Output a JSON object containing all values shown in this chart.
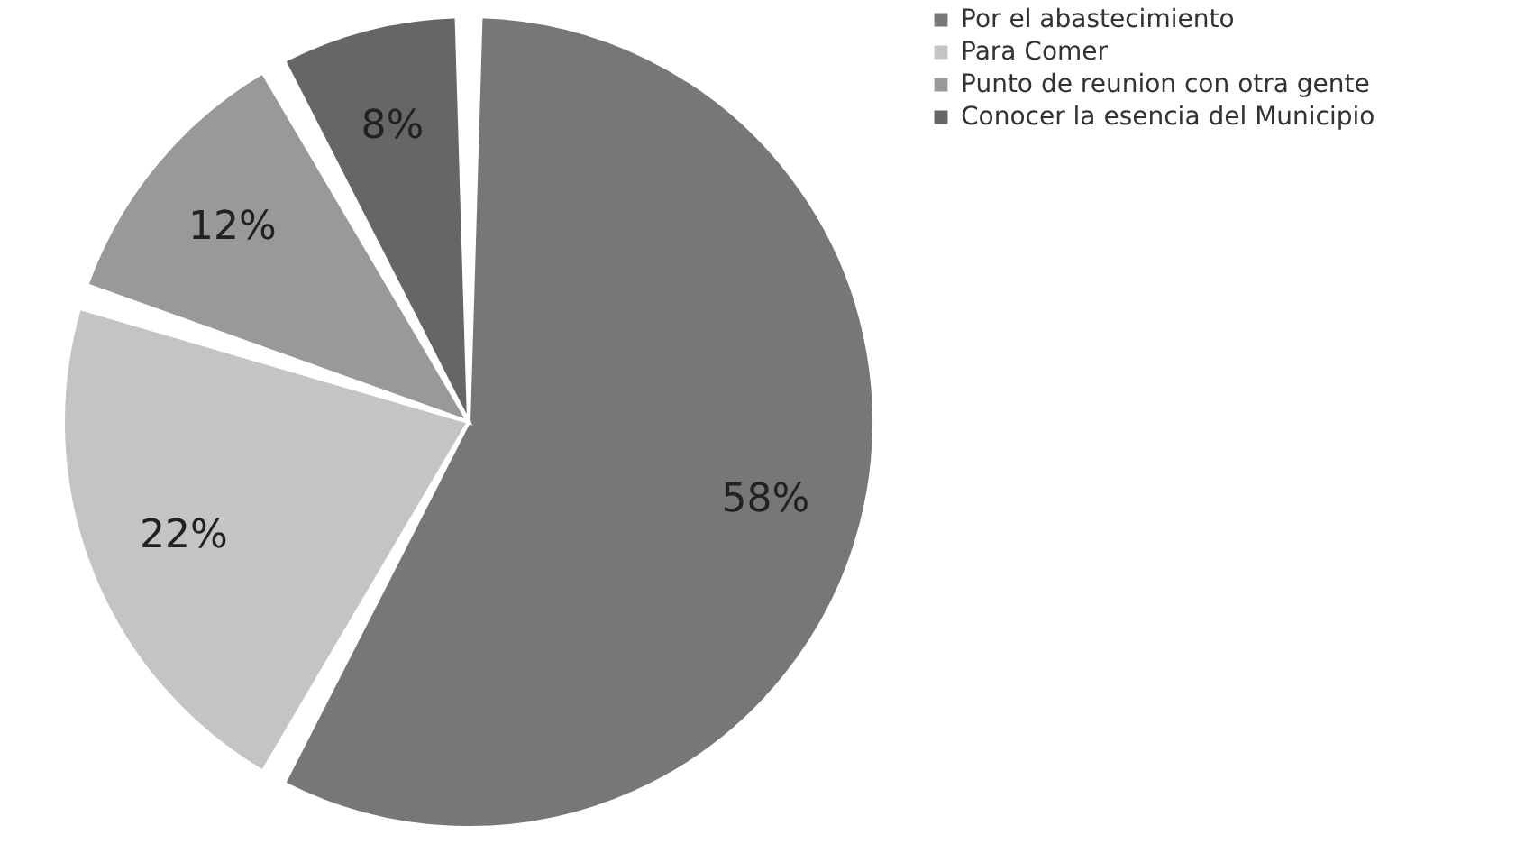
{
  "chart_data": {
    "type": "pie",
    "categories": [
      "Por el abastecimiento",
      "Para Comer",
      "Punto de reunion con otra gente",
      "Conocer la esencia del Municipio"
    ],
    "values": [
      58,
      22,
      12,
      8
    ],
    "value_labels": [
      "58%",
      "22%",
      "12%",
      "8%"
    ],
    "colors": [
      "#777777",
      "#c4c4c4",
      "#999999",
      "#666666"
    ],
    "legend": "right"
  }
}
